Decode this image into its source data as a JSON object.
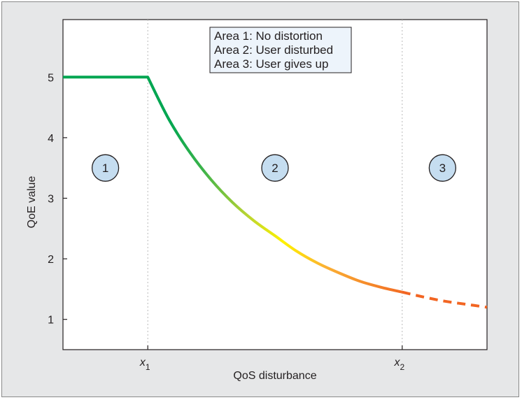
{
  "chart_data": {
    "type": "line",
    "title": "",
    "xlabel": "QoS disturbance",
    "ylabel": "QoE value",
    "ylim": [
      0.5,
      5.95
    ],
    "yticks": [
      1,
      2,
      3,
      4,
      5
    ],
    "xlim": [
      0,
      1
    ],
    "xticks": [
      {
        "var": "x",
        "sub": "1",
        "value": 0.2
      },
      {
        "var": "x",
        "sub": "2",
        "value": 0.8
      }
    ],
    "grid": false,
    "legend_box": {
      "placement": "top-center",
      "lines": [
        "Area 1: No distortion",
        "Area 2: User disturbed",
        "Area 3: User gives up"
      ]
    },
    "areas": [
      {
        "label": "1",
        "x": 0.1,
        "y": 3.5
      },
      {
        "label": "2",
        "x": 0.5,
        "y": 3.5
      },
      {
        "label": "3",
        "x": 0.895,
        "y": 3.5
      }
    ],
    "series": [
      {
        "style": "solid",
        "x": [
          0,
          0.2,
          0.25,
          0.3,
          0.35,
          0.4,
          0.45,
          0.5,
          0.55,
          0.6,
          0.65,
          0.7,
          0.75,
          0.8
        ],
        "y": [
          5.0,
          5.0,
          4.3,
          3.75,
          3.3,
          2.93,
          2.63,
          2.38,
          2.13,
          1.93,
          1.77,
          1.63,
          1.53,
          1.45
        ]
      },
      {
        "style": "dashed",
        "x": [
          0.8,
          0.85,
          0.9,
          0.95,
          1.0
        ],
        "y": [
          1.45,
          1.37,
          1.3,
          1.25,
          1.2
        ]
      }
    ],
    "colors": {
      "gradient": [
        "#00a651",
        "#8dc63f",
        "#fff200",
        "#fbb034",
        "#f26522"
      ],
      "area_circle_fill": "#c5ddf0",
      "guide_line": "#b9b9b9",
      "legend_fill": "#edf4fb"
    }
  }
}
